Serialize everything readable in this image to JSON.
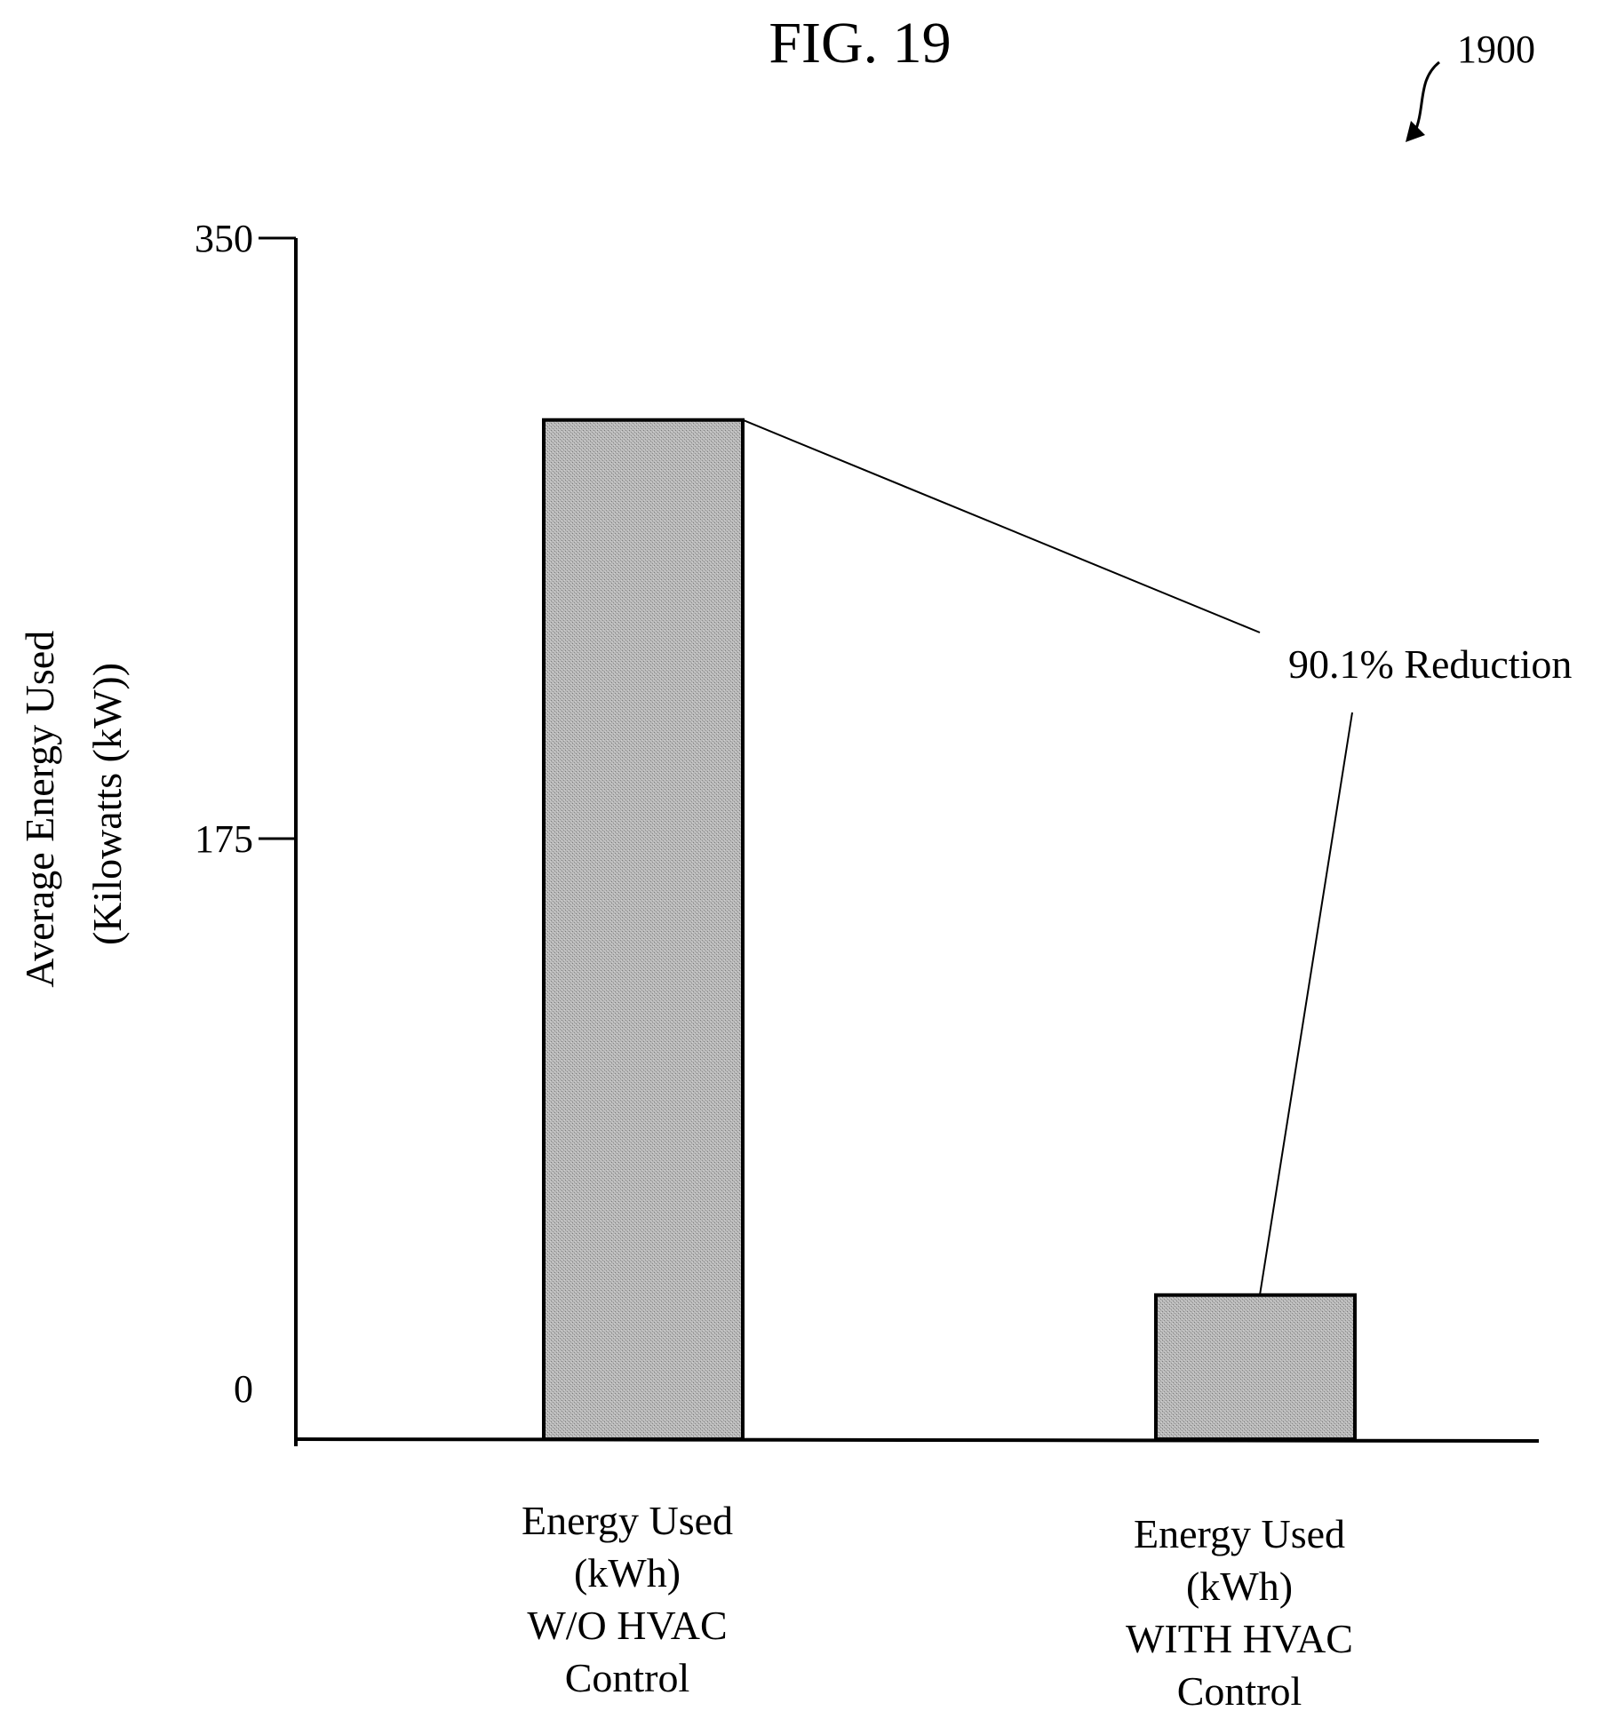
{
  "figure": {
    "title": "FIG. 19",
    "reference_number": "1900"
  },
  "chart_data": {
    "type": "bar",
    "ylabel_lines": [
      "Average Energy Used",
      "(Kilowatts (kW))"
    ],
    "xlabel": "",
    "ylim": [
      0,
      350
    ],
    "yticks": [
      0,
      175,
      350
    ],
    "ytick_labels": [
      "0",
      "175",
      "350"
    ],
    "categories": [
      [
        "Energy Used",
        "(kWh)",
        "W/O HVAC",
        "Control"
      ],
      [
        "Energy Used",
        "(kWh)",
        "WITH HVAC",
        "Control"
      ]
    ],
    "values": [
      297,
      42
    ],
    "annotation": "90.1% Reduction",
    "grid": false,
    "legend": "none",
    "colors": {
      "bar_fill": "#b0b0b0",
      "bar_stroke": "#000000",
      "axis": "#000000"
    }
  }
}
